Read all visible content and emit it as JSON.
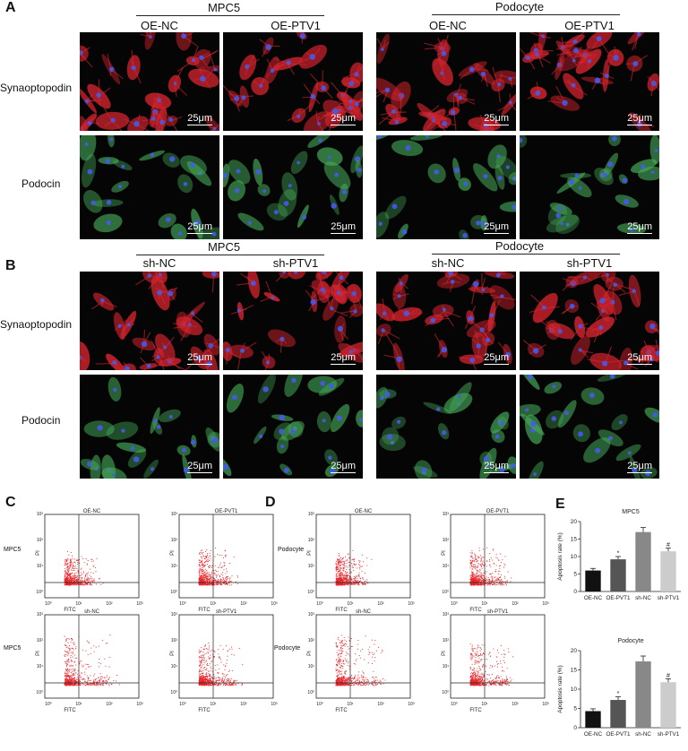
{
  "panels": {
    "A": "A",
    "B": "B",
    "C": "C",
    "D": "D",
    "E": "E"
  },
  "panelA": {
    "groups": [
      {
        "name": "MPC5",
        "left": "OE-NC",
        "right": "OE-PTV1"
      },
      {
        "name": "Podocyte",
        "left": "OE-NC",
        "right": "OE-PTV1"
      }
    ],
    "rows": [
      "Synaoptopodin",
      "Podocin"
    ]
  },
  "panelB": {
    "groups": [
      {
        "name": "MPC5",
        "left": "sh-NC",
        "right": "sh-PTV1"
      },
      {
        "name": "Podocyte",
        "left": "sh-NC",
        "right": "sh-PTV1"
      }
    ],
    "rows": [
      "Synaoptopodin",
      "Podocin"
    ]
  },
  "scale_bar": "25μm",
  "flow": {
    "C": {
      "rows": [
        "MPC5",
        "MPC5"
      ],
      "titles": [
        "OE-NC",
        "OE-PVT1",
        "sh-NC",
        "sh-PTV1"
      ]
    },
    "D": {
      "rows": [
        "Podocyte",
        "Podocyte"
      ],
      "titles": [
        "OE-NC",
        "OE-PVT1",
        "sh-NC",
        "sh-PTV1"
      ]
    },
    "xaxis": "FITC",
    "yaxis": "PI",
    "ticks": [
      "10⁰",
      "10¹",
      "10²",
      "10³"
    ]
  },
  "chart_data": [
    {
      "type": "bar",
      "title": "MPC5",
      "ylabel": "Apoptosis rate (%)",
      "categories": [
        "OE-NC",
        "OE-PVT1",
        "sh-NC",
        "sh-PTV1"
      ],
      "values": [
        6.0,
        9.2,
        17.0,
        11.5
      ],
      "errors": [
        0.6,
        0.8,
        1.3,
        0.9
      ],
      "ylim": [
        0,
        20
      ],
      "yticks": [
        "0",
        "5",
        "10",
        "15",
        "20"
      ],
      "annotations": [
        "",
        "*",
        "",
        "#"
      ],
      "colors": [
        "#111111",
        "#555555",
        "#888888",
        "#cccccc"
      ]
    },
    {
      "type": "bar",
      "title": "Podocyte",
      "ylabel": "Apoptosis rate (%)",
      "categories": [
        "OE-NC",
        "OE-PVT1",
        "sh-NC",
        "sh-PTV1"
      ],
      "values": [
        4.3,
        7.2,
        17.2,
        11.8
      ],
      "errors": [
        0.6,
        0.8,
        1.4,
        0.9
      ],
      "ylim": [
        0,
        20
      ],
      "yticks": [
        "0",
        "5",
        "10",
        "15",
        "20"
      ],
      "annotations": [
        "",
        "*",
        "",
        "#"
      ],
      "colors": [
        "#111111",
        "#555555",
        "#888888",
        "#cccccc"
      ]
    }
  ]
}
